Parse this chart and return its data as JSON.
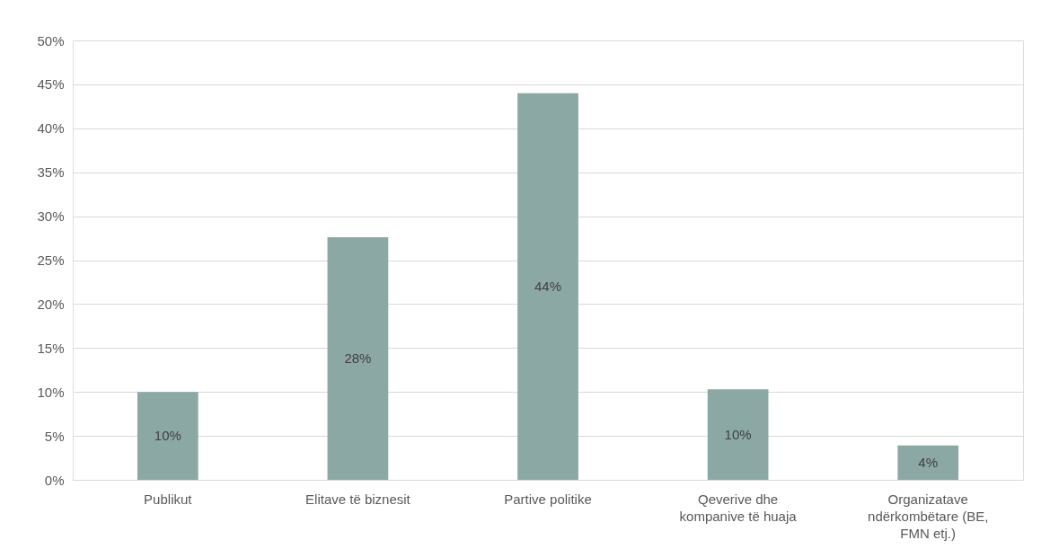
{
  "chart_data": {
    "type": "bar",
    "categories": [
      "Publikut",
      "Elitave të biznesit",
      "Partive politike",
      "Qeverive dhe kompanive të huaja",
      "Organizatave ndërkombëtare (BE, FMN etj.)"
    ],
    "values": [
      10,
      27.6,
      44,
      10.3,
      3.9
    ],
    "value_labels": [
      "10%",
      "28%",
      "44%",
      "10%",
      "4%"
    ],
    "color": "#8ca8a5",
    "ylim": [
      0,
      50
    ],
    "yticks": [
      {
        "value": 0,
        "label": "0%"
      },
      {
        "value": 5,
        "label": "5%"
      },
      {
        "value": 10,
        "label": "10%"
      },
      {
        "value": 15,
        "label": "15%"
      },
      {
        "value": 20,
        "label": "20%"
      },
      {
        "value": 25,
        "label": "25%"
      },
      {
        "value": 30,
        "label": "30%"
      },
      {
        "value": 35,
        "label": "35%"
      },
      {
        "value": 40,
        "label": "40%"
      },
      {
        "value": 45,
        "label": "45%"
      },
      {
        "value": 50,
        "label": "50%"
      }
    ],
    "grid": "y"
  }
}
